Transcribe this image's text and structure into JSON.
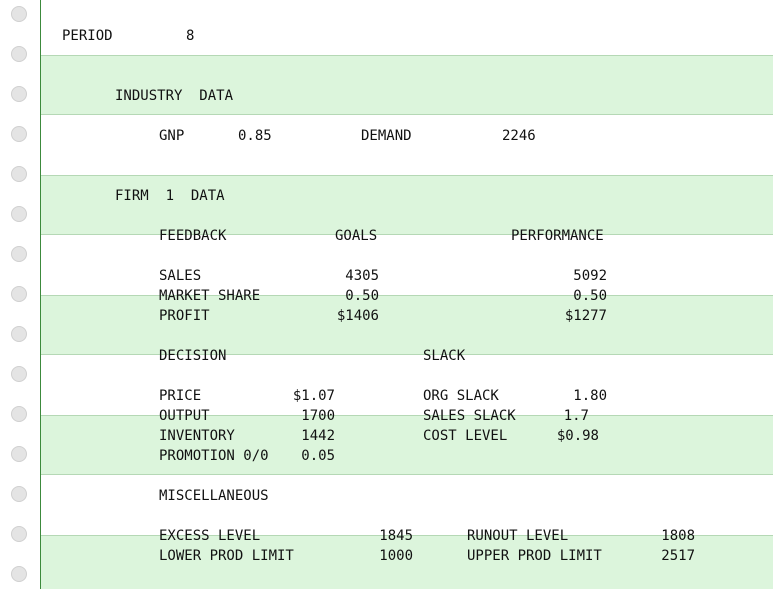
{
  "period": {
    "label": "PERIOD",
    "value": "8"
  },
  "industry": {
    "heading": "INDUSTRY  DATA",
    "gnp_label": "GNP",
    "gnp_value": "0.85",
    "demand_label": "DEMAND",
    "demand_value": "2246"
  },
  "firm": {
    "heading": "FIRM  1  DATA",
    "feedback": {
      "label": "FEEDBACK",
      "goals_header": "GOALS",
      "performance_header": "PERFORMANCE",
      "rows": [
        {
          "label": "SALES",
          "goal": "4305",
          "performance": "5092"
        },
        {
          "label": "MARKET SHARE",
          "goal": "0.50",
          "performance": "0.50"
        },
        {
          "label": "PROFIT",
          "goal": "$1406",
          "performance": "$1277"
        }
      ]
    },
    "decision": {
      "label": "DECISION",
      "rows": [
        {
          "label": "PRICE",
          "value": "$1.07"
        },
        {
          "label": "OUTPUT",
          "value": "1700"
        },
        {
          "label": "INVENTORY",
          "value": "1442"
        },
        {
          "label": "PROMOTION 0/0",
          "value": "0.05"
        }
      ]
    },
    "slack": {
      "label": "SLACK",
      "rows": [
        {
          "label": "ORG SLACK",
          "value": "1.80"
        },
        {
          "label": "SALES SLACK",
          "value": "1.7"
        },
        {
          "label": "COST LEVEL",
          "value": "$0.98"
        }
      ]
    },
    "misc": {
      "label": "MISCELLANEOUS",
      "excess_label": "EXCESS LEVEL",
      "excess_value": "1845",
      "lower_label": "LOWER PROD LIMIT",
      "lower_value": "1000",
      "runout_label": "RUNOUT LEVEL",
      "runout_value": "1808",
      "upper_label": "UPPER PROD LIMIT",
      "upper_value": "2517"
    }
  }
}
